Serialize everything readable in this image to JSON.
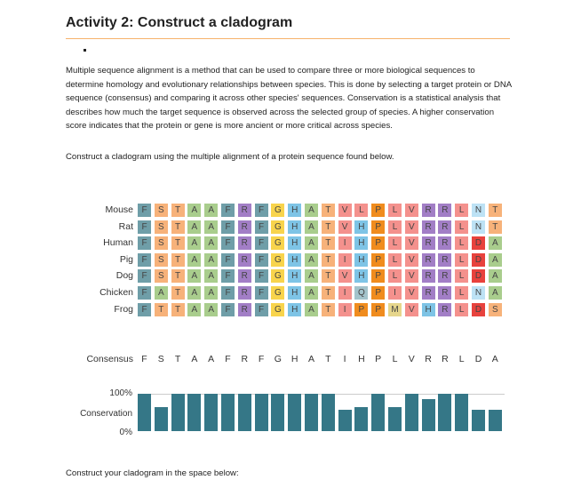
{
  "title": "Activity 2: Construct a cladogram",
  "paragraph1": "Multiple sequence alignment is a method that can be used to compare three or more biological sequences to determine homology and evolutionary relationships between species. This is done by selecting a target protein or DNA sequence (consensus) and comparing it across other species' sequences. Conservation is a statistical analysis that describes how much the target sequence is observed across the selected group of species.  A higher conservation score indicates that the protein or gene is more ancient or more critical across species.",
  "paragraph2": "Construct a cladogram using the multiple alignment of a protein sequence found below.",
  "paragraph3": "Construct your cladogram in the space below:",
  "alignment": {
    "species": [
      "Mouse",
      "Rat",
      "Human",
      "Pig",
      "Dog",
      "Chicken",
      "Frog"
    ],
    "sequences": [
      "FSTAAFRFGHATVLPLVRRLNT",
      "FSTAAFRFGHATVHPLVRRLNT",
      "FSTAAFRFGHATIHPLVRRLDA",
      "FSTAAFRFGHATIHPLVRRLDA",
      "FSTAAFRFGHATVHPLVRRLDA",
      "FATAAFRFGHATIQPIVRRLNA",
      "FTTAAFRFGHATIPPMVHRLDS"
    ],
    "consensus_label": "Consensus",
    "consensus": "FSTAAFRFGHATIHPLVRRLDA",
    "colors": {
      "F": "#6f9ea8",
      "S": "#f7b27a",
      "T": "#f7b27a",
      "A": "#a9cd8d",
      "R": "#a27ec6",
      "G": "#f8d44c",
      "H": "#7ec4e6",
      "V": "#f4918d",
      "L": "#f4918d",
      "I": "#f4918d",
      "P": "#f08c1e",
      "N": "#bde2f5",
      "D": "#e8423d",
      "Q": "#a3c3cb",
      "M": "#e6d68c"
    }
  },
  "conservation": {
    "label": "Conservation",
    "max_label": "100%",
    "min_label": "0%",
    "color": "#357787",
    "values": [
      1,
      0.64,
      1,
      1,
      1,
      1,
      1,
      1,
      1,
      1,
      1,
      1,
      0.56,
      0.64,
      1,
      0.64,
      1,
      0.86,
      1,
      1,
      0.56,
      0.56
    ]
  }
}
